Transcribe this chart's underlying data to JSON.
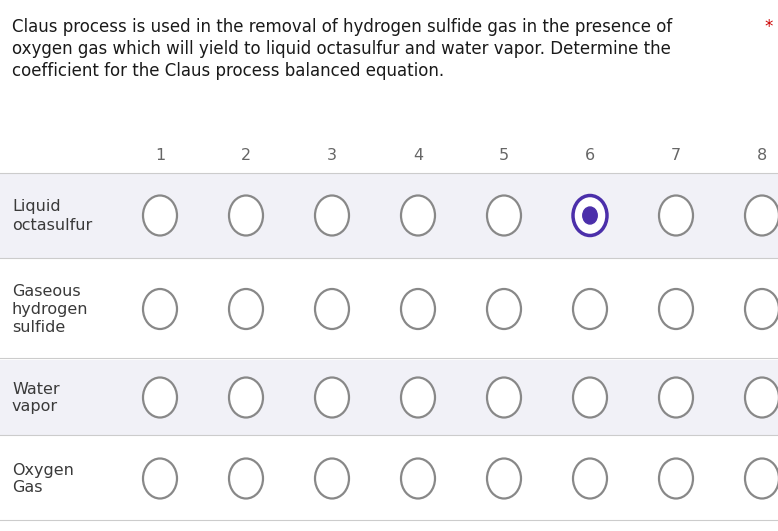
{
  "title_lines": [
    "Claus process is used in the removal of hydrogen sulfide gas in the presence of",
    "oxygen gas which will yield to liquid octasulfur and water vapor. Determine the",
    "coefficient for the Claus process balanced equation."
  ],
  "asterisk": "*",
  "columns": [
    "1",
    "2",
    "3",
    "4",
    "5",
    "6",
    "7",
    "8"
  ],
  "rows": [
    {
      "label_lines": [
        "Liquid",
        "octasulfur"
      ],
      "selected_col": 6
    },
    {
      "label_lines": [
        "Gaseous",
        "hydrogen",
        "sulfide"
      ],
      "selected_col": null
    },
    {
      "label_lines": [
        "Water",
        "vapor"
      ],
      "selected_col": null
    },
    {
      "label_lines": [
        "Oxygen",
        "Gas"
      ],
      "selected_col": null
    }
  ],
  "bg_color": "#ffffff",
  "row_bg_shaded": "#f1f1f7",
  "row_bg_plain": "#ffffff",
  "label_color": "#3a3a3a",
  "circle_edge_color": "#888888",
  "selected_edge_color": "#4b2faa",
  "selected_fill_color": "#ffffff",
  "selected_inner_color": "#4b2faa",
  "header_color": "#666666",
  "text_color_body": "#1a1a1a",
  "asterisk_color": "#cc0000",
  "font_size_title": 12,
  "font_size_header": 11.5,
  "font_size_label": 11.5,
  "fig_width": 7.78,
  "fig_height": 5.31,
  "dpi": 100
}
